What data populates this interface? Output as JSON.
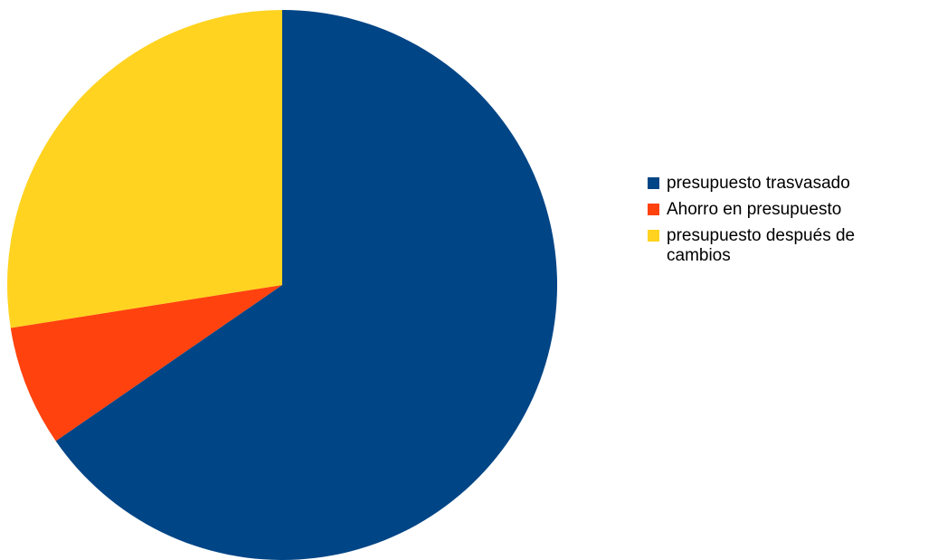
{
  "chart_data": {
    "type": "pie",
    "title": "",
    "slices": [
      {
        "label": "presupuesto trasvasado",
        "value": 65.4,
        "color": "#004586"
      },
      {
        "label": "Ahorro en presupuesto",
        "value": 7.1,
        "color": "#ff420e"
      },
      {
        "label": "presupuesto después de cambios",
        "value": 27.5,
        "color": "#ffd320"
      }
    ],
    "start_angle_deg": 0,
    "direction": "clockwise",
    "legend_position": "right"
  }
}
